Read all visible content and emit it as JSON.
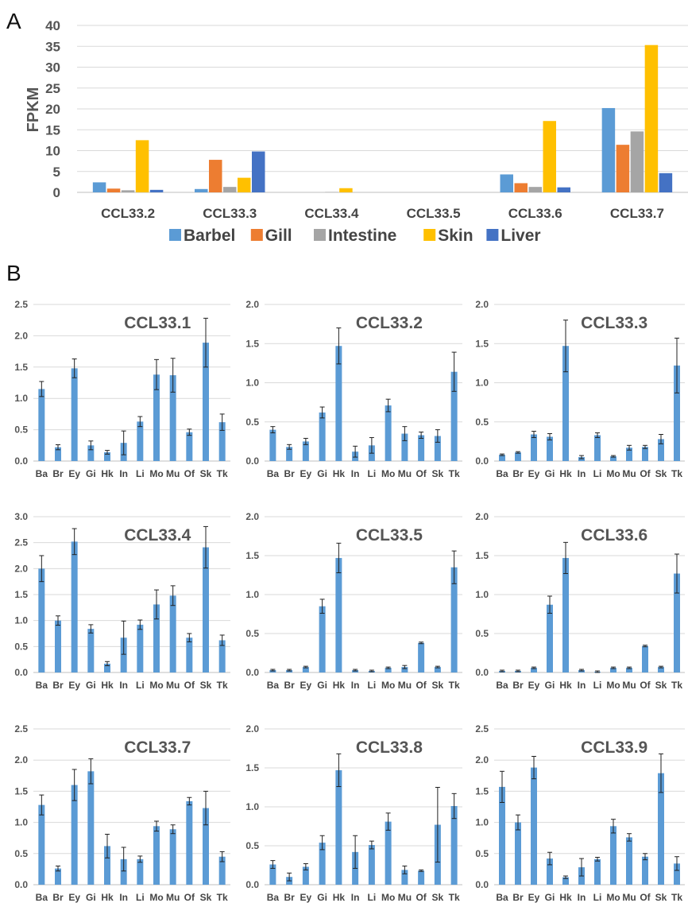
{
  "chart_data": [
    {
      "type": "bar",
      "panel": "A",
      "ylabel": "FPKM",
      "ylim": [
        0,
        40
      ],
      "yticks": [
        "0",
        "5",
        "10",
        "15",
        "20",
        "25",
        "30",
        "35",
        "40"
      ],
      "categories": [
        "CCL33.2",
        "CCL33.3",
        "CCL33.4",
        "CCL33.5",
        "CCL33.6",
        "CCL33.7"
      ],
      "series": [
        {
          "name": "Barbel",
          "color": "#5b9bd5",
          "values": [
            2.4,
            0.8,
            0,
            0,
            4.3,
            20.2
          ]
        },
        {
          "name": "Gill",
          "color": "#ed7d31",
          "values": [
            0.9,
            7.8,
            0,
            0,
            2.2,
            11.4
          ]
        },
        {
          "name": "Intestine",
          "color": "#a5a5a5",
          "values": [
            0.5,
            1.3,
            0.1,
            0,
            1.3,
            14.6
          ]
        },
        {
          "name": "Skin",
          "color": "#ffc000",
          "values": [
            12.5,
            3.5,
            1.0,
            0,
            17.1,
            35.3
          ]
        },
        {
          "name": "Liver",
          "color": "#4472c4",
          "values": [
            0.6,
            9.8,
            0,
            0,
            1.2,
            4.6
          ]
        }
      ],
      "legend": "bottom"
    },
    {
      "type": "bar",
      "panel": "B",
      "title": "CCL33.1",
      "ylim": [
        0,
        2.5
      ],
      "yticks": [
        "0.0",
        "0.5",
        "1.0",
        "1.5",
        "2.0",
        "2.5"
      ],
      "categories": [
        "Ba",
        "Br",
        "Ey",
        "Gi",
        "Hk",
        "In",
        "Li",
        "Mo",
        "Mu",
        "Of",
        "Sk",
        "Tk"
      ],
      "values": [
        1.15,
        0.22,
        1.48,
        0.25,
        0.14,
        0.29,
        0.63,
        1.38,
        1.37,
        0.46,
        1.89,
        0.62
      ],
      "errors": [
        0.12,
        0.04,
        0.15,
        0.07,
        0.03,
        0.19,
        0.08,
        0.24,
        0.27,
        0.05,
        0.39,
        0.13
      ],
      "color": "#5b9bd5"
    },
    {
      "type": "bar",
      "panel": "B",
      "title": "CCL33.2",
      "ylim": [
        0,
        2.0
      ],
      "yticks": [
        "0.0",
        "0.5",
        "1.0",
        "1.5",
        "2.0"
      ],
      "categories": [
        "Ba",
        "Br",
        "Ey",
        "Gi",
        "Hk",
        "In",
        "Li",
        "Mo",
        "Mu",
        "Of",
        "Sk",
        "Tk"
      ],
      "values": [
        0.4,
        0.18,
        0.25,
        0.62,
        1.47,
        0.12,
        0.2,
        0.71,
        0.35,
        0.33,
        0.32,
        1.14
      ],
      "errors": [
        0.04,
        0.03,
        0.04,
        0.07,
        0.23,
        0.07,
        0.1,
        0.08,
        0.09,
        0.04,
        0.08,
        0.25
      ],
      "color": "#5b9bd5"
    },
    {
      "type": "bar",
      "panel": "B",
      "title": "CCL33.3",
      "ylim": [
        0,
        2.0
      ],
      "yticks": [
        "0.0",
        "0.5",
        "1.0",
        "1.5",
        "2.0"
      ],
      "categories": [
        "Ba",
        "Br",
        "Ey",
        "Gi",
        "Hk",
        "In",
        "Li",
        "Mo",
        "Mu",
        "Of",
        "Sk",
        "Tk"
      ],
      "values": [
        0.08,
        0.11,
        0.34,
        0.31,
        1.47,
        0.05,
        0.33,
        0.06,
        0.17,
        0.18,
        0.28,
        1.22
      ],
      "errors": [
        0.01,
        0.01,
        0.04,
        0.04,
        0.33,
        0.02,
        0.03,
        0.01,
        0.03,
        0.02,
        0.06,
        0.35
      ],
      "color": "#5b9bd5"
    },
    {
      "type": "bar",
      "panel": "B",
      "title": "CCL33.4",
      "ylim": [
        0,
        3.0
      ],
      "yticks": [
        "0.0",
        "0.5",
        "1.0",
        "1.5",
        "2.0",
        "2.5",
        "3.0"
      ],
      "categories": [
        "Ba",
        "Br",
        "Ey",
        "Gi",
        "Hk",
        "In",
        "Li",
        "Mo",
        "Mu",
        "Of",
        "Sk",
        "Tk"
      ],
      "values": [
        2.0,
        1.0,
        2.52,
        0.84,
        0.17,
        0.67,
        0.92,
        1.31,
        1.48,
        0.67,
        2.41,
        0.62
      ],
      "errors": [
        0.25,
        0.09,
        0.25,
        0.08,
        0.04,
        0.32,
        0.09,
        0.28,
        0.19,
        0.08,
        0.4,
        0.1
      ],
      "color": "#5b9bd5"
    },
    {
      "type": "bar",
      "panel": "B",
      "title": "CCL33.5",
      "ylim": [
        0,
        2.0
      ],
      "yticks": [
        "0.0",
        "0.5",
        "1.0",
        "1.5",
        "2.0"
      ],
      "categories": [
        "Ba",
        "Br",
        "Ey",
        "Gi",
        "Hk",
        "In",
        "Li",
        "Mo",
        "Mu",
        "Of",
        "Sk",
        "Tk"
      ],
      "values": [
        0.03,
        0.03,
        0.07,
        0.85,
        1.47,
        0.03,
        0.02,
        0.06,
        0.07,
        0.38,
        0.07,
        1.35
      ],
      "errors": [
        0.01,
        0.01,
        0.01,
        0.09,
        0.19,
        0.01,
        0.01,
        0.01,
        0.02,
        0.01,
        0.01,
        0.21
      ],
      "color": "#5b9bd5"
    },
    {
      "type": "bar",
      "panel": "B",
      "title": "CCL33.6",
      "ylim": [
        0,
        2.0
      ],
      "yticks": [
        "0.0",
        "0.5",
        "1.0",
        "1.5",
        "2.0"
      ],
      "categories": [
        "Ba",
        "Br",
        "Ey",
        "Gi",
        "Hk",
        "In",
        "Li",
        "Mo",
        "Mu",
        "Of",
        "Sk",
        "Tk"
      ],
      "values": [
        0.02,
        0.02,
        0.06,
        0.87,
        1.47,
        0.03,
        0.01,
        0.06,
        0.06,
        0.34,
        0.07,
        1.27
      ],
      "errors": [
        0.01,
        0.01,
        0.01,
        0.11,
        0.2,
        0.01,
        0.01,
        0.01,
        0.01,
        0.01,
        0.01,
        0.25
      ],
      "color": "#5b9bd5"
    },
    {
      "type": "bar",
      "panel": "B",
      "title": "CCL33.7",
      "ylim": [
        0,
        2.5
      ],
      "yticks": [
        "0.0",
        "0.5",
        "1.0",
        "1.5",
        "2.0",
        "2.5"
      ],
      "categories": [
        "Ba",
        "Br",
        "Ey",
        "Gi",
        "Hk",
        "In",
        "Li",
        "Mo",
        "Mu",
        "Of",
        "Sk",
        "Tk"
      ],
      "values": [
        1.28,
        0.26,
        1.6,
        1.82,
        0.62,
        0.41,
        0.41,
        0.94,
        0.89,
        1.34,
        1.23,
        0.45
      ],
      "errors": [
        0.16,
        0.04,
        0.25,
        0.2,
        0.19,
        0.19,
        0.05,
        0.08,
        0.07,
        0.06,
        0.27,
        0.08
      ],
      "color": "#5b9bd5"
    },
    {
      "type": "bar",
      "panel": "B",
      "title": "CCL33.8",
      "ylim": [
        0,
        2.0
      ],
      "yticks": [
        "0.0",
        "0.5",
        "1.0",
        "1.5",
        "2.0"
      ],
      "categories": [
        "Ba",
        "Br",
        "Ey",
        "Gi",
        "Hk",
        "In",
        "Li",
        "Mo",
        "Mu",
        "Of",
        "Sk",
        "Tk"
      ],
      "values": [
        0.26,
        0.1,
        0.23,
        0.54,
        1.47,
        0.42,
        0.51,
        0.81,
        0.19,
        0.18,
        0.77,
        1.01
      ],
      "errors": [
        0.05,
        0.05,
        0.04,
        0.09,
        0.21,
        0.21,
        0.05,
        0.11,
        0.05,
        0.01,
        0.48,
        0.16
      ],
      "color": "#5b9bd5"
    },
    {
      "type": "bar",
      "panel": "B",
      "title": "CCL33.9",
      "ylim": [
        0,
        2.5
      ],
      "yticks": [
        "0.0",
        "0.5",
        "1.0",
        "1.5",
        "2.0",
        "2.5"
      ],
      "categories": [
        "Ba",
        "Br",
        "Ey",
        "Gi",
        "Hk",
        "In",
        "Li",
        "Mo",
        "Mu",
        "Of",
        "Sk",
        "Tk"
      ],
      "values": [
        1.57,
        1.0,
        1.88,
        0.42,
        0.12,
        0.28,
        0.41,
        0.94,
        0.76,
        0.45,
        1.79,
        0.34
      ],
      "errors": [
        0.25,
        0.12,
        0.18,
        0.1,
        0.02,
        0.14,
        0.03,
        0.11,
        0.06,
        0.05,
        0.31,
        0.11
      ],
      "color": "#5b9bd5"
    }
  ],
  "labels": {
    "panel_a": "A",
    "panel_b": "B"
  }
}
